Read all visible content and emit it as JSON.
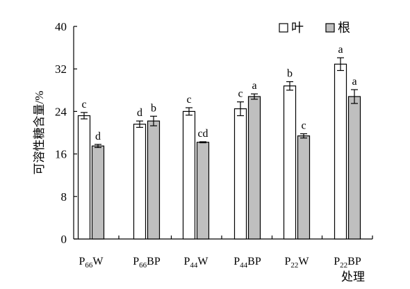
{
  "chart_data": {
    "type": "bar",
    "ylabel": "可溶性糖含量/%",
    "xlabel": "处理",
    "ylim": [
      0,
      40
    ],
    "yticks": [
      0,
      8,
      16,
      24,
      32,
      40
    ],
    "legend_position": "top-right",
    "categories": [
      {
        "label": "P66W",
        "base": "P",
        "sub": "66",
        "suffix": "W"
      },
      {
        "label": "P66BP",
        "base": "P",
        "sub": "66",
        "suffix": "BP"
      },
      {
        "label": "P44W",
        "base": "P",
        "sub": "44",
        "suffix": "W"
      },
      {
        "label": "P44BP",
        "base": "P",
        "sub": "44",
        "suffix": "BP"
      },
      {
        "label": "P22W",
        "base": "P",
        "sub": "22",
        "suffix": "W"
      },
      {
        "label": "P22BP",
        "base": "P",
        "sub": "22",
        "suffix": "BP"
      }
    ],
    "series": [
      {
        "name": "叶",
        "color": "#ffffff",
        "values": [
          23.2,
          21.6,
          24.0,
          24.5,
          28.8,
          32.9
        ],
        "errors": [
          0.6,
          0.6,
          0.7,
          1.3,
          0.8,
          1.2
        ],
        "labels": [
          "c",
          "d",
          "c",
          "c",
          "b",
          "a"
        ]
      },
      {
        "name": "根",
        "color": "#bfbfbf",
        "values": [
          17.5,
          22.2,
          18.2,
          26.8,
          19.4,
          26.8
        ],
        "errors": [
          0.3,
          0.9,
          0.1,
          0.5,
          0.4,
          1.3
        ],
        "labels": [
          "d",
          "b",
          "cd",
          "a",
          "c",
          "a"
        ]
      }
    ]
  }
}
